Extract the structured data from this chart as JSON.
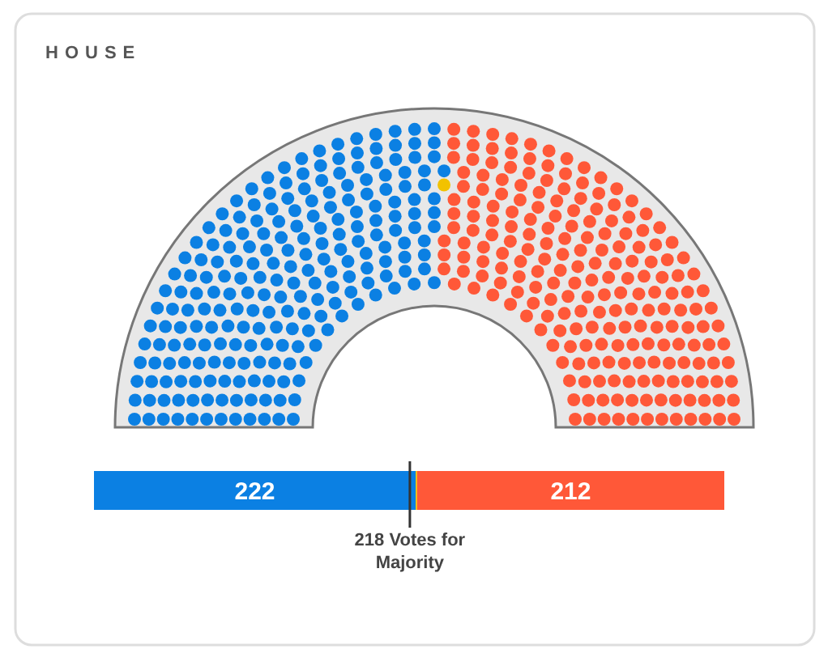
{
  "chart_data": {
    "type": "bar",
    "title": "HOUSE",
    "orientation": "horizontal",
    "stacked": true,
    "categories": [
      null
    ],
    "series": [
      {
        "color": "#0b80e3",
        "values": [
          222
        ],
        "value_labels": [
          "222"
        ]
      },
      {
        "color": "#f2c200",
        "values": [
          1
        ],
        "value_labels": [
          null
        ]
      },
      {
        "color": "#ff5838",
        "values": [
          212
        ],
        "value_labels": [
          "212"
        ]
      }
    ],
    "ref_lines": [
      {
        "axis": "x",
        "value": 218,
        "label": "218 Votes for Majority",
        "color": "#333333"
      }
    ],
    "tick_labels": false
  }
}
